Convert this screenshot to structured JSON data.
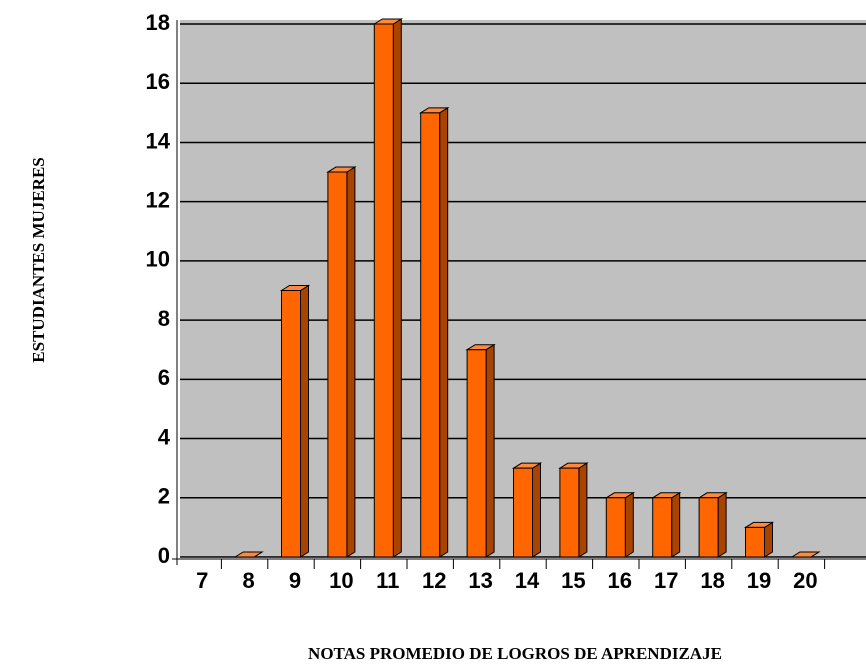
{
  "chart_data": {
    "type": "bar3d",
    "xlabel": "NOTAS PROMEDIO DE  LOGROS DE APRENDIZAJE",
    "ylabel": "ESTUDIANTES  MUJERES",
    "categories": [
      "7",
      "8",
      "9",
      "10",
      "11",
      "12",
      "13",
      "14",
      "15",
      "16",
      "17",
      "18",
      "19",
      "20"
    ],
    "values": [
      null,
      0,
      9,
      13,
      18,
      15,
      7,
      3,
      3,
      2,
      2,
      2,
      1,
      0
    ],
    "color": "#ff6600",
    "ylim": [
      0,
      18
    ],
    "yticks": [
      0,
      2,
      4,
      6,
      8,
      10,
      12,
      14,
      16,
      18
    ],
    "grid": true
  }
}
